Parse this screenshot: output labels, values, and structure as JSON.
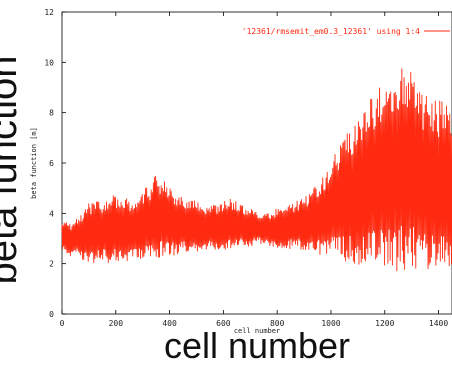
{
  "chart_data": {
    "type": "line",
    "title": "",
    "xlabel": "cell number",
    "ylabel": "beta function [m]",
    "big_xlabel": "cell number",
    "big_ylabel": "beta function",
    "xlim": [
      0,
      1450
    ],
    "ylim": [
      0,
      12
    ],
    "xticks": [
      0,
      200,
      400,
      600,
      800,
      1000,
      1200,
      1400
    ],
    "yticks": [
      0,
      2,
      4,
      6,
      8,
      10,
      12
    ],
    "grid": false,
    "legend_position": "top-right",
    "line_color": "#ff2a10",
    "series": [
      {
        "name": "'12361/rmsemit_em0.3_12361' using 1:4",
        "upper_envelope": [
          [
            0,
            3.8
          ],
          [
            30,
            3.6
          ],
          [
            60,
            3.9
          ],
          [
            100,
            4.4
          ],
          [
            150,
            4.6
          ],
          [
            200,
            4.8
          ],
          [
            250,
            4.6
          ],
          [
            300,
            5.0
          ],
          [
            330,
            5.2
          ],
          [
            350,
            5.6
          ],
          [
            370,
            5.4
          ],
          [
            400,
            5.0
          ],
          [
            450,
            4.6
          ],
          [
            500,
            4.6
          ],
          [
            540,
            4.2
          ],
          [
            580,
            4.4
          ],
          [
            620,
            4.6
          ],
          [
            650,
            4.5
          ],
          [
            680,
            4.3
          ],
          [
            720,
            4.1
          ],
          [
            760,
            4.0
          ],
          [
            800,
            4.2
          ],
          [
            860,
            4.4
          ],
          [
            920,
            4.8
          ],
          [
            980,
            5.6
          ],
          [
            1020,
            6.5
          ],
          [
            1060,
            7.2
          ],
          [
            1100,
            8.0
          ],
          [
            1150,
            8.8
          ],
          [
            1200,
            9.1
          ],
          [
            1240,
            9.6
          ],
          [
            1260,
            10.0
          ],
          [
            1300,
            9.6
          ],
          [
            1340,
            8.8
          ],
          [
            1380,
            8.6
          ],
          [
            1420,
            8.4
          ],
          [
            1450,
            8.0
          ]
        ],
        "lower_envelope": [
          [
            0,
            2.6
          ],
          [
            30,
            2.2
          ],
          [
            60,
            2.3
          ],
          [
            100,
            2.0
          ],
          [
            150,
            2.0
          ],
          [
            200,
            2.1
          ],
          [
            250,
            2.0
          ],
          [
            300,
            2.1
          ],
          [
            350,
            2.2
          ],
          [
            400,
            2.3
          ],
          [
            450,
            2.4
          ],
          [
            500,
            2.5
          ],
          [
            550,
            2.6
          ],
          [
            600,
            2.5
          ],
          [
            650,
            2.6
          ],
          [
            700,
            2.7
          ],
          [
            750,
            2.8
          ],
          [
            800,
            2.6
          ],
          [
            850,
            2.6
          ],
          [
            900,
            2.5
          ],
          [
            950,
            2.4
          ],
          [
            1000,
            2.2
          ],
          [
            1050,
            2.0
          ],
          [
            1100,
            1.9
          ],
          [
            1150,
            1.9
          ],
          [
            1200,
            1.8
          ],
          [
            1250,
            1.7
          ],
          [
            1300,
            1.8
          ],
          [
            1350,
            1.7
          ],
          [
            1400,
            1.8
          ],
          [
            1450,
            1.9
          ]
        ],
        "samples": 700
      }
    ]
  }
}
